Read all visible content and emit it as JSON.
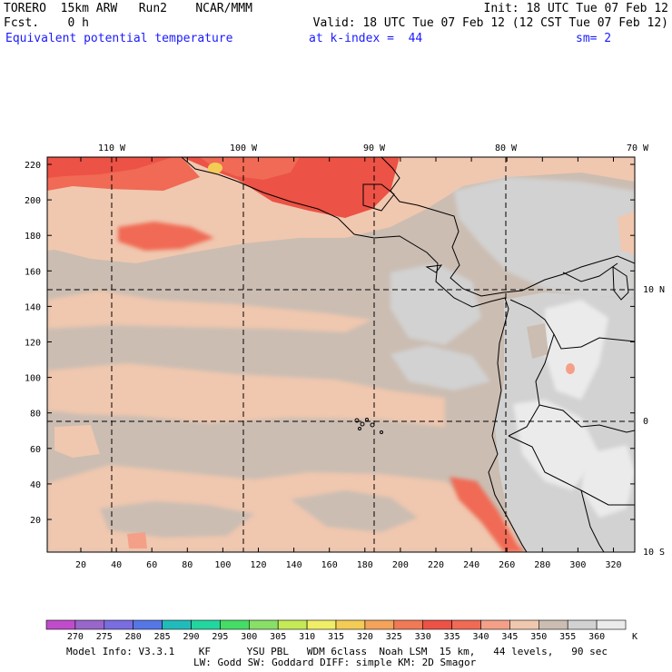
{
  "header": {
    "model": "TORERO  15km ARW   Run2    NCAR/MMM",
    "init": "Init: 18 UTC Tue 07 Feb 12",
    "fcst": "Fcst.    0 h",
    "valid": "Valid: 18 UTC Tue 07 Feb 12 (12 CST Tue 07 Feb 12)",
    "field": "Equivalent potential temperature",
    "level": "at k-index =  44",
    "smoothing": "sm= 2"
  },
  "map": {
    "top_lon_labels": [
      "110 W",
      "100 W",
      "90 W",
      "80 W",
      "70 W"
    ],
    "right_lat_labels": [
      "10 N",
      "0",
      "10 S"
    ],
    "left_y_ticks": [
      "220",
      "200",
      "180",
      "160",
      "140",
      "120",
      "100",
      "80",
      "60",
      "40",
      "20"
    ],
    "bottom_x_ticks": [
      "20",
      "40",
      "60",
      "80",
      "100",
      "120",
      "140",
      "160",
      "180",
      "200",
      "220",
      "240",
      "260",
      "280",
      "300",
      "320"
    ]
  },
  "colorbar": {
    "unit": "K",
    "labels": [
      "270",
      "275",
      "280",
      "285",
      "290",
      "295",
      "300",
      "305",
      "310",
      "315",
      "320",
      "325",
      "330",
      "335",
      "340",
      "345",
      "350",
      "355",
      "360"
    ],
    "colors": [
      "#c04ccc",
      "#9966cc",
      "#7a6de0",
      "#5577e6",
      "#22bbbb",
      "#22d6a0",
      "#44dd66",
      "#88e066",
      "#c4ea55",
      "#f0ee66",
      "#f4cc55",
      "#f4a35a",
      "#f07a55",
      "#ec5245",
      "#f06a55",
      "#f4a088",
      "#f0c7af",
      "#cbbdb2",
      "#d2d2d2",
      "#ebebeb"
    ]
  },
  "footer": {
    "line1": "Model Info: V3.3.1    KF      YSU PBL   WDM 6class  Noah LSM  15 km,   44 levels,   90 sec",
    "line2": "LW: Godd SW: Goddard DIFF: simple KM: 2D Smagor"
  }
}
